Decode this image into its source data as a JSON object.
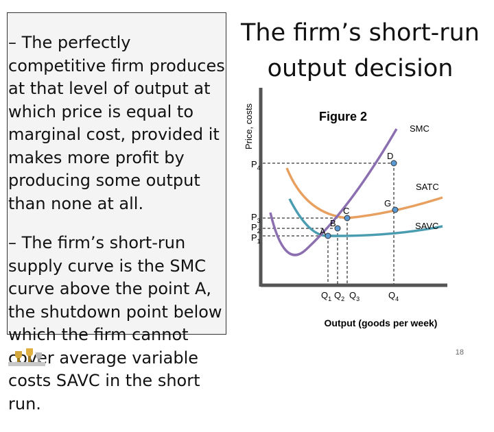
{
  "slide": {
    "title_line1": "The firm’s short-run",
    "title_line2": "output decision",
    "bullets": [
      "– The perfectly competitive firm produces at that level of output at which price is equal to marginal cost, provided it makes more profit by producing some output than none at all.",
      "– The firm’s short-run supply curve is the SMC curve above the point A, the shutdown point below which the firm cannot cover average variable costs SAVC in the short run."
    ],
    "page_number": "18"
  },
  "figure": {
    "caption": "Figure 2",
    "ylabel": "Price, costs",
    "xlabel": "Output (goods per week)",
    "curve_labels": {
      "smc": "SMC",
      "satc": "SATC",
      "savc": "SAVC"
    },
    "point_labels": {
      "a": "A",
      "b": "B",
      "c": "C",
      "d": "D",
      "g": "G"
    },
    "price_labels": {
      "p4": "P",
      "p4_sub": "4",
      "p3": "P",
      "p3_sub": "3",
      "p2": "P",
      "p2_sub": "2",
      "p1": "P",
      "p1_sub": "1"
    },
    "qty_labels": {
      "q1": "Q",
      "q1_sub": "1",
      "q2": "Q",
      "q2_sub": "2",
      "q3": "Q",
      "q3_sub": "3",
      "q4": "Q",
      "q4_sub": "4"
    },
    "colors": {
      "smc": "#8b6fb0",
      "satc": "#e8a060",
      "savc": "#4a9cb0",
      "axis": "#555555",
      "point_fill": "#5b9bd5"
    }
  }
}
